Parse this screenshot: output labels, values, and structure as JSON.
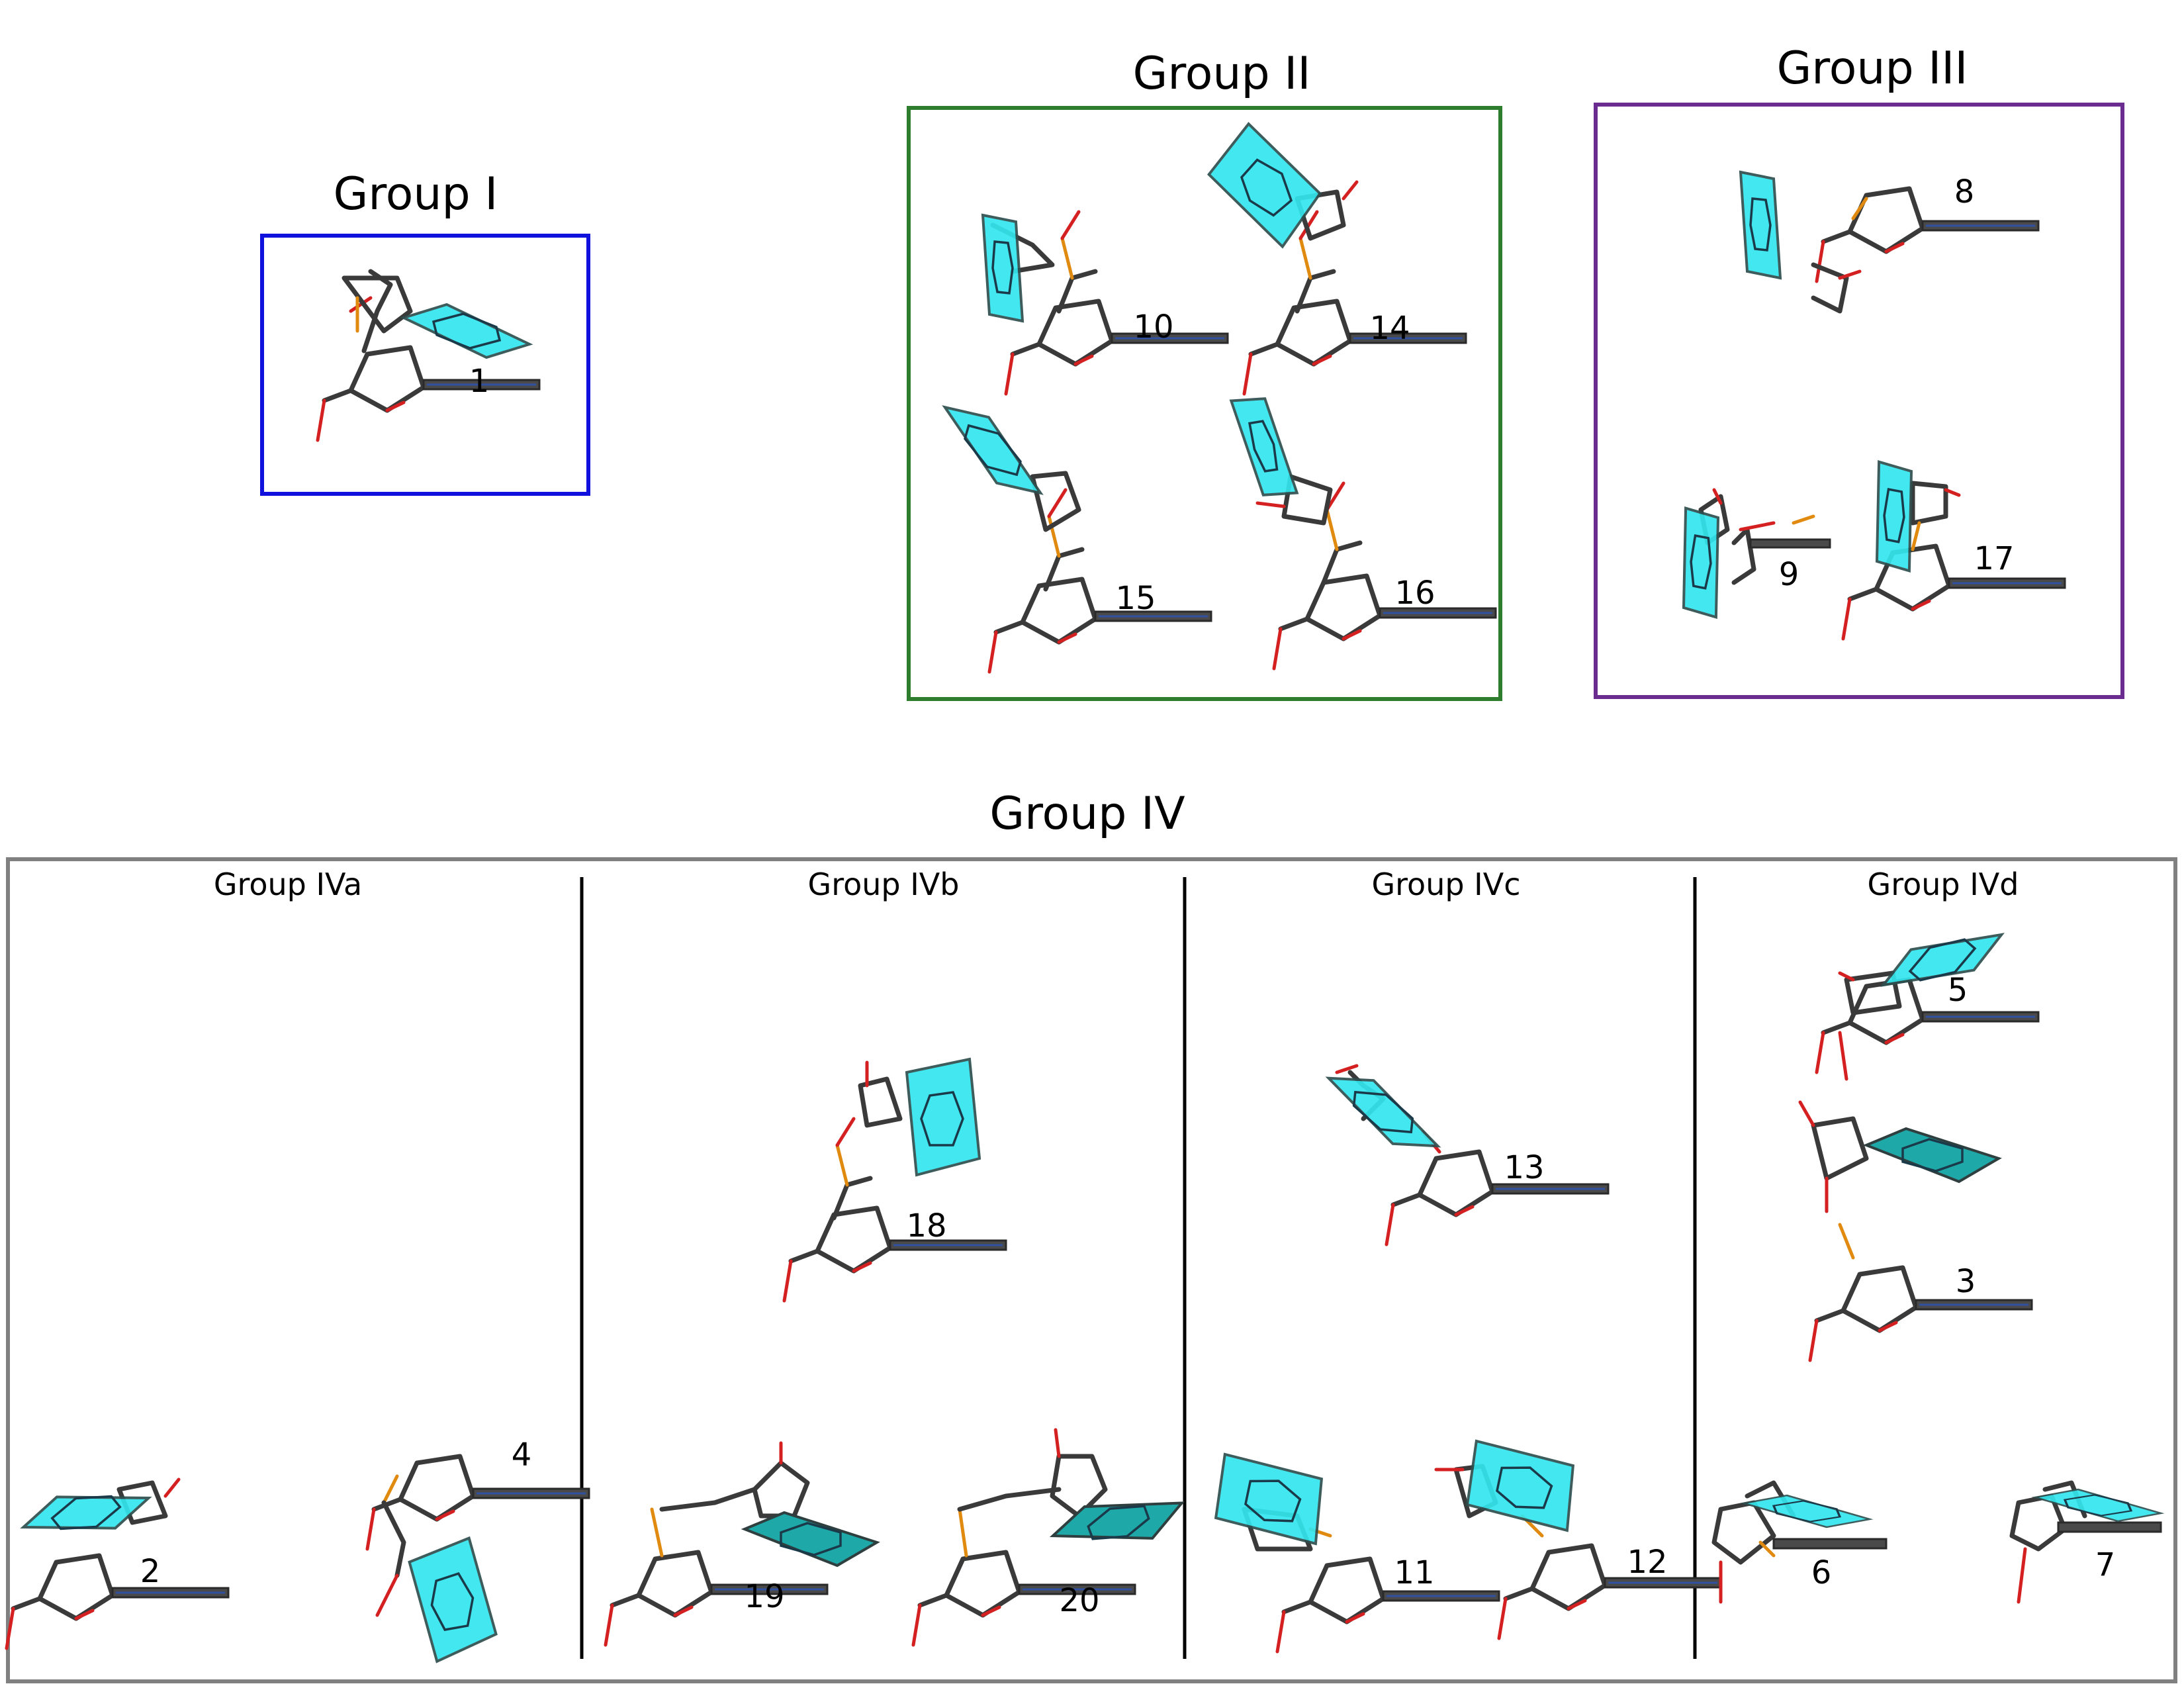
{
  "groups": {
    "g1": {
      "title": "Group I",
      "color": "#1111dd"
    },
    "g2": {
      "title": "Group II",
      "color": "#2e7d2e"
    },
    "g3": {
      "title": "Group III",
      "color": "#6a2c8e"
    },
    "g4": {
      "title": "Group IV",
      "color": "#808080"
    }
  },
  "subgroups": {
    "a": "Group IVa",
    "b": "Group IVb",
    "c": "Group IVc",
    "d": "Group IVd"
  },
  "molecules": {
    "m1": "1",
    "m2": "2",
    "m3": "3",
    "m4": "4",
    "m5": "5",
    "m6": "6",
    "m7": "7",
    "m8": "8",
    "m9": "9",
    "m10": "10",
    "m11": "11",
    "m12": "12",
    "m13": "13",
    "m14": "14",
    "m15": "15",
    "m16": "16",
    "m17": "17",
    "m18": "18",
    "m19": "19",
    "m20": "20"
  },
  "colors": {
    "carbon": "#3a3a3a",
    "oxygen": "#d42020",
    "phosphorus": "#e08a10",
    "aromatic_ring": "#33e6ee",
    "base_stack": "#4a4a4a",
    "divider": "#000000"
  }
}
